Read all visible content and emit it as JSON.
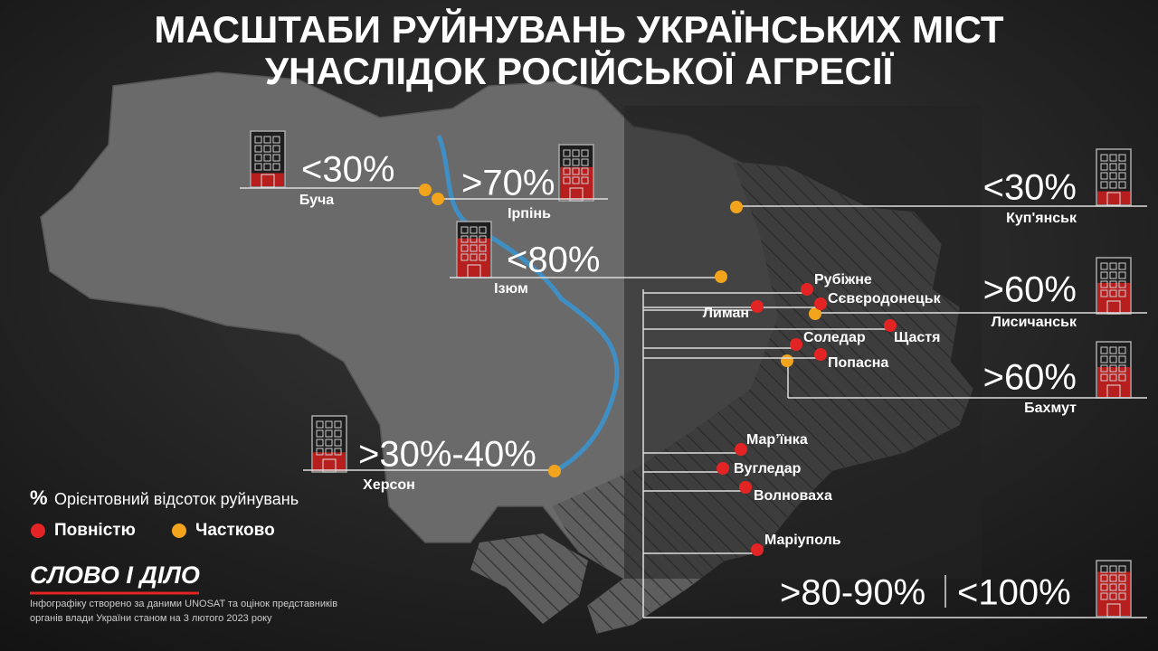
{
  "title": [
    "МАСШТАБИ РУЙНУВАНЬ УКРАЇНСЬКИХ МІСТ",
    "УНАСЛІДОК РОСІЙСЬКОЇ АГРЕСІЇ"
  ],
  "colors": {
    "full": "#e32424",
    "partial": "#f2a51c"
  },
  "callouts": [
    {
      "city": "Буча",
      "percent": "<30%"
    },
    {
      "city": "Ірпінь",
      "percent": ">70%"
    },
    {
      "city": "Ізюм",
      "percent": "<80%"
    },
    {
      "city": "Херсон",
      "percent": ">30%-40%"
    },
    {
      "city": "Куп'янськ",
      "percent": "<30%"
    },
    {
      "city": "Лисичанськ",
      "percent": ">60%"
    },
    {
      "city": "Бахмут",
      "percent": ">60%"
    }
  ],
  "group": {
    "cities": [
      "Рубіжне",
      "Сєвєродонецьк",
      "Лиман",
      "Щастя",
      "Соледар",
      "Попасна",
      "Мар’їнка",
      "Вугледар",
      "Волноваха",
      "Маріуполь"
    ],
    "percent_a": ">80-90%",
    "percent_b": "<100%"
  },
  "legend": {
    "symbol": "%",
    "text": "Орієнтовний відсоток руйнувань",
    "full": "Повністю",
    "partial": "Частково"
  },
  "brand": "СЛОВО І ДІЛО",
  "source": [
    "Інфографіку створено за даними UNOSAT та оцінок представників",
    "органів влади України станом на 3 лютого 2023 року"
  ]
}
